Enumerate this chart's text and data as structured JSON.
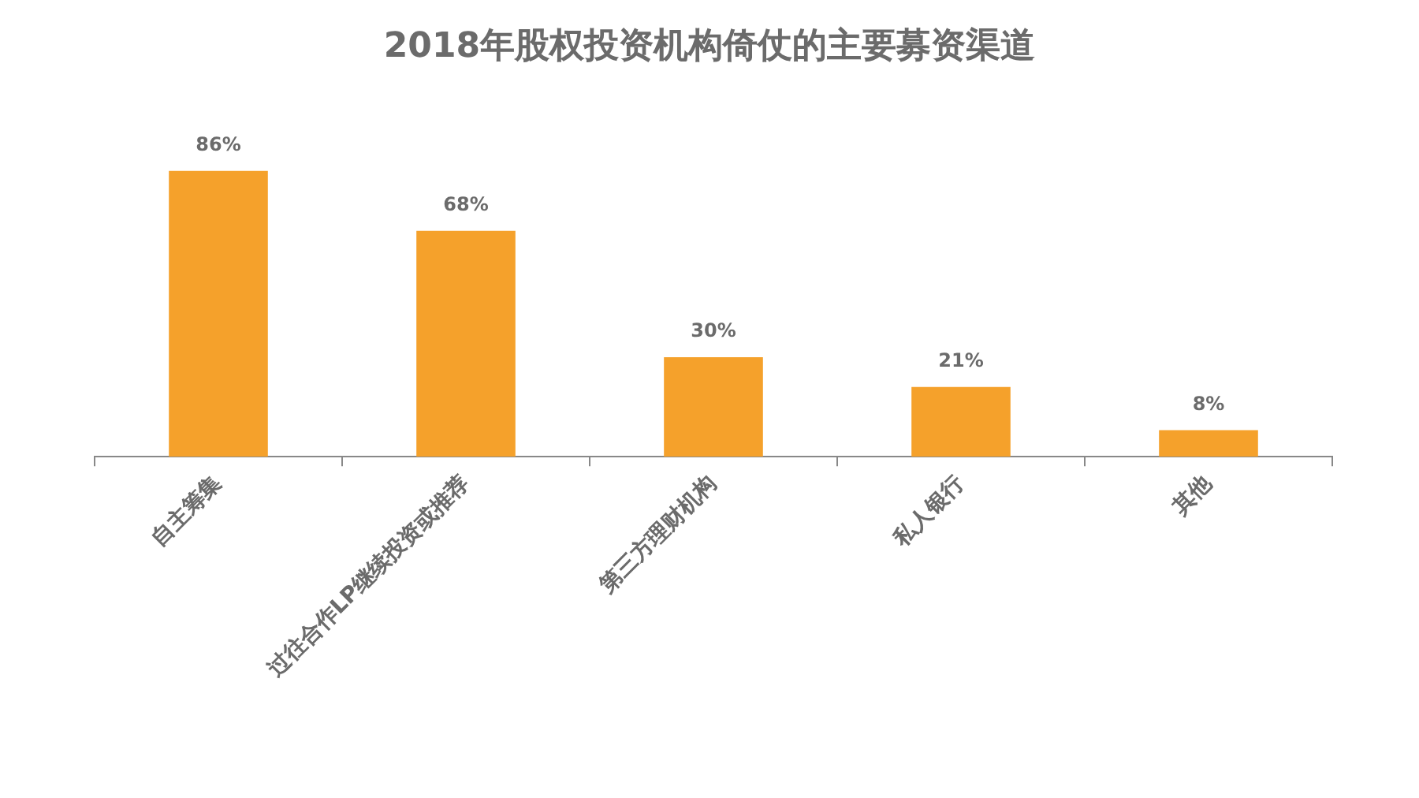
{
  "chart_data": {
    "type": "bar",
    "title": "2018年股权投资机构倚仗的主要募资渠道",
    "categories": [
      "自主筹集",
      "过往合作LP继续投资或推荐",
      "第三方理财机构",
      "私人银行",
      "其他"
    ],
    "values": [
      86,
      68,
      30,
      21,
      8
    ],
    "value_labels": [
      "86%",
      "68%",
      "30%",
      "21%",
      "8%"
    ],
    "color": "#f5a12b",
    "grid": false,
    "legend": false
  }
}
